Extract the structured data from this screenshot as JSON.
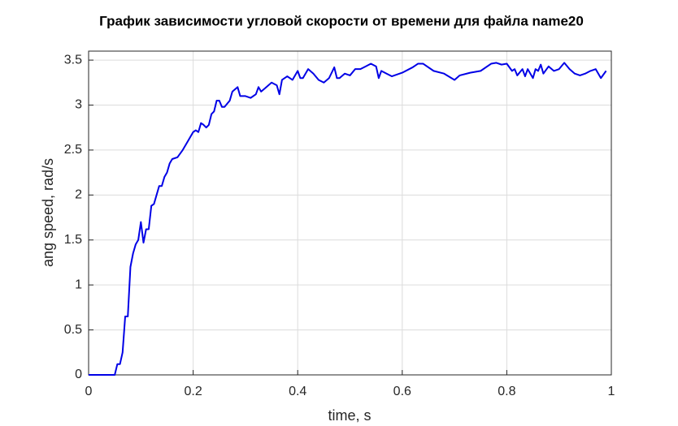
{
  "chart_data": {
    "type": "line",
    "title": "График зависимости угловой скорости от времени для файла name20",
    "x_label": "time, s",
    "y_label": "ang speed, rad/s",
    "x": [
      0,
      0.045,
      0.05,
      0.055,
      0.06,
      0.065,
      0.07,
      0.075,
      0.08,
      0.085,
      0.09,
      0.095,
      0.1,
      0.105,
      0.11,
      0.115,
      0.12,
      0.125,
      0.13,
      0.135,
      0.14,
      0.145,
      0.15,
      0.155,
      0.16,
      0.17,
      0.18,
      0.19,
      0.2,
      0.205,
      0.21,
      0.215,
      0.22,
      0.225,
      0.23,
      0.235,
      0.24,
      0.245,
      0.25,
      0.255,
      0.26,
      0.27,
      0.275,
      0.285,
      0.29,
      0.3,
      0.31,
      0.32,
      0.325,
      0.33,
      0.34,
      0.35,
      0.36,
      0.365,
      0.37,
      0.38,
      0.39,
      0.4,
      0.405,
      0.41,
      0.42,
      0.43,
      0.44,
      0.45,
      0.46,
      0.47,
      0.475,
      0.48,
      0.49,
      0.5,
      0.51,
      0.52,
      0.53,
      0.54,
      0.55,
      0.555,
      0.56,
      0.57,
      0.58,
      0.6,
      0.62,
      0.63,
      0.64,
      0.66,
      0.68,
      0.7,
      0.71,
      0.73,
      0.75,
      0.77,
      0.78,
      0.79,
      0.8,
      0.81,
      0.815,
      0.82,
      0.83,
      0.835,
      0.84,
      0.85,
      0.855,
      0.86,
      0.865,
      0.87,
      0.88,
      0.89,
      0.9,
      0.91,
      0.92,
      0.93,
      0.94,
      0.95,
      0.96,
      0.97,
      0.98,
      0.99
    ],
    "series": [
      {
        "color": "#0000e6",
        "values": [
          0,
          0,
          0,
          0.12,
          0.12,
          0.25,
          0.65,
          0.65,
          1.2,
          1.35,
          1.45,
          1.5,
          1.7,
          1.47,
          1.62,
          1.62,
          1.88,
          1.9,
          2.0,
          2.1,
          2.1,
          2.2,
          2.25,
          2.35,
          2.4,
          2.42,
          2.5,
          2.6,
          2.7,
          2.72,
          2.7,
          2.8,
          2.78,
          2.75,
          2.78,
          2.9,
          2.93,
          3.05,
          3.05,
          2.98,
          2.98,
          3.05,
          3.15,
          3.2,
          3.1,
          3.1,
          3.08,
          3.12,
          3.2,
          3.15,
          3.2,
          3.25,
          3.22,
          3.12,
          3.28,
          3.32,
          3.28,
          3.38,
          3.3,
          3.3,
          3.4,
          3.35,
          3.28,
          3.25,
          3.3,
          3.42,
          3.3,
          3.3,
          3.35,
          3.33,
          3.4,
          3.4,
          3.43,
          3.46,
          3.43,
          3.3,
          3.38,
          3.35,
          3.32,
          3.36,
          3.42,
          3.46,
          3.46,
          3.38,
          3.35,
          3.28,
          3.33,
          3.36,
          3.38,
          3.46,
          3.47,
          3.45,
          3.46,
          3.38,
          3.4,
          3.33,
          3.4,
          3.32,
          3.4,
          3.3,
          3.4,
          3.38,
          3.45,
          3.35,
          3.43,
          3.38,
          3.4,
          3.47,
          3.4,
          3.35,
          3.33,
          3.35,
          3.38,
          3.4,
          3.3,
          3.38
        ]
      }
    ],
    "xlim": [
      0,
      1
    ],
    "xticks": [
      0,
      0.2,
      0.4,
      0.6,
      0.8,
      1
    ],
    "ylim": [
      0,
      3.6
    ],
    "yticks": [
      0,
      0.5,
      1,
      1.5,
      2,
      2.5,
      3,
      3.5
    ],
    "grid": true
  }
}
